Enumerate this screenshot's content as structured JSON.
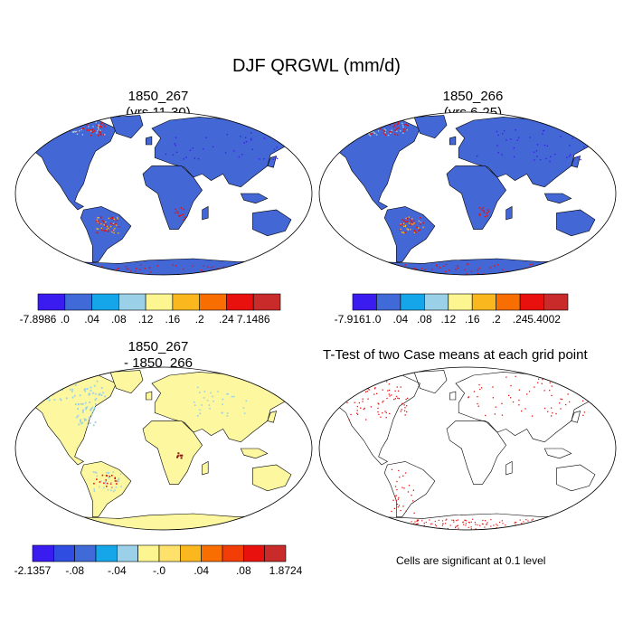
{
  "figure": {
    "title": "DJF QRGWL (mm/d)",
    "panels": {
      "top_left": {
        "title_line1": "1850_267",
        "title_line2": "(yrs 11-30)"
      },
      "top_right": {
        "title_line1": "1850_266",
        "title_line2": "(yrs 6-25)"
      },
      "bottom_left": {
        "title_line1": "1850_267",
        "title_line2": "- 1850_266"
      },
      "bottom_right": {
        "title": "T-Test of two Case means at each grid point",
        "note": "Cells are significant at 0.1 level"
      }
    }
  },
  "colorbars": {
    "top_left": {
      "colors": [
        "#3b1cf0",
        "#3f6ad8",
        "#14a6e8",
        "#9bd1e8",
        "#fdf590",
        "#fbb81e",
        "#f96e00",
        "#e8110e",
        "#c92a2a"
      ],
      "labels": [
        "-7.8986",
        ".0",
        ".04",
        ".08",
        ".12",
        ".16",
        ".2",
        ".24",
        "7.1486"
      ]
    },
    "top_right": {
      "colors": [
        "#3b1cf0",
        "#3f6ad8",
        "#14a6e8",
        "#9bd1e8",
        "#fdf590",
        "#fbb81e",
        "#f96e00",
        "#e8110e",
        "#c92a2a"
      ],
      "labels": [
        "-7.9161",
        ".0",
        ".04",
        ".08",
        ".12",
        ".16",
        ".2",
        ".24",
        "5.4002"
      ]
    },
    "bottom_left": {
      "colors": [
        "#3b1cf0",
        "#2f4de0",
        "#3f6ad8",
        "#14a6e8",
        "#9bd1e8",
        "#fdf590",
        "#fde16a",
        "#fbb81e",
        "#f96e00",
        "#f33d07",
        "#e8110e",
        "#c92a2a"
      ],
      "labels": [
        "-2.1357",
        "-.08",
        "-.04",
        "-.0",
        ".04",
        ".08",
        "1.8724"
      ]
    }
  },
  "map_colors": {
    "ocean": "#ffffff",
    "land_abs": "#4467d6",
    "land_diff": "#fdf7a0",
    "highlight_red": "#e8110e",
    "highlight_orange": "#fbb81e",
    "light_blue": "#9bd1e8",
    "signif": "#e8110e"
  }
}
